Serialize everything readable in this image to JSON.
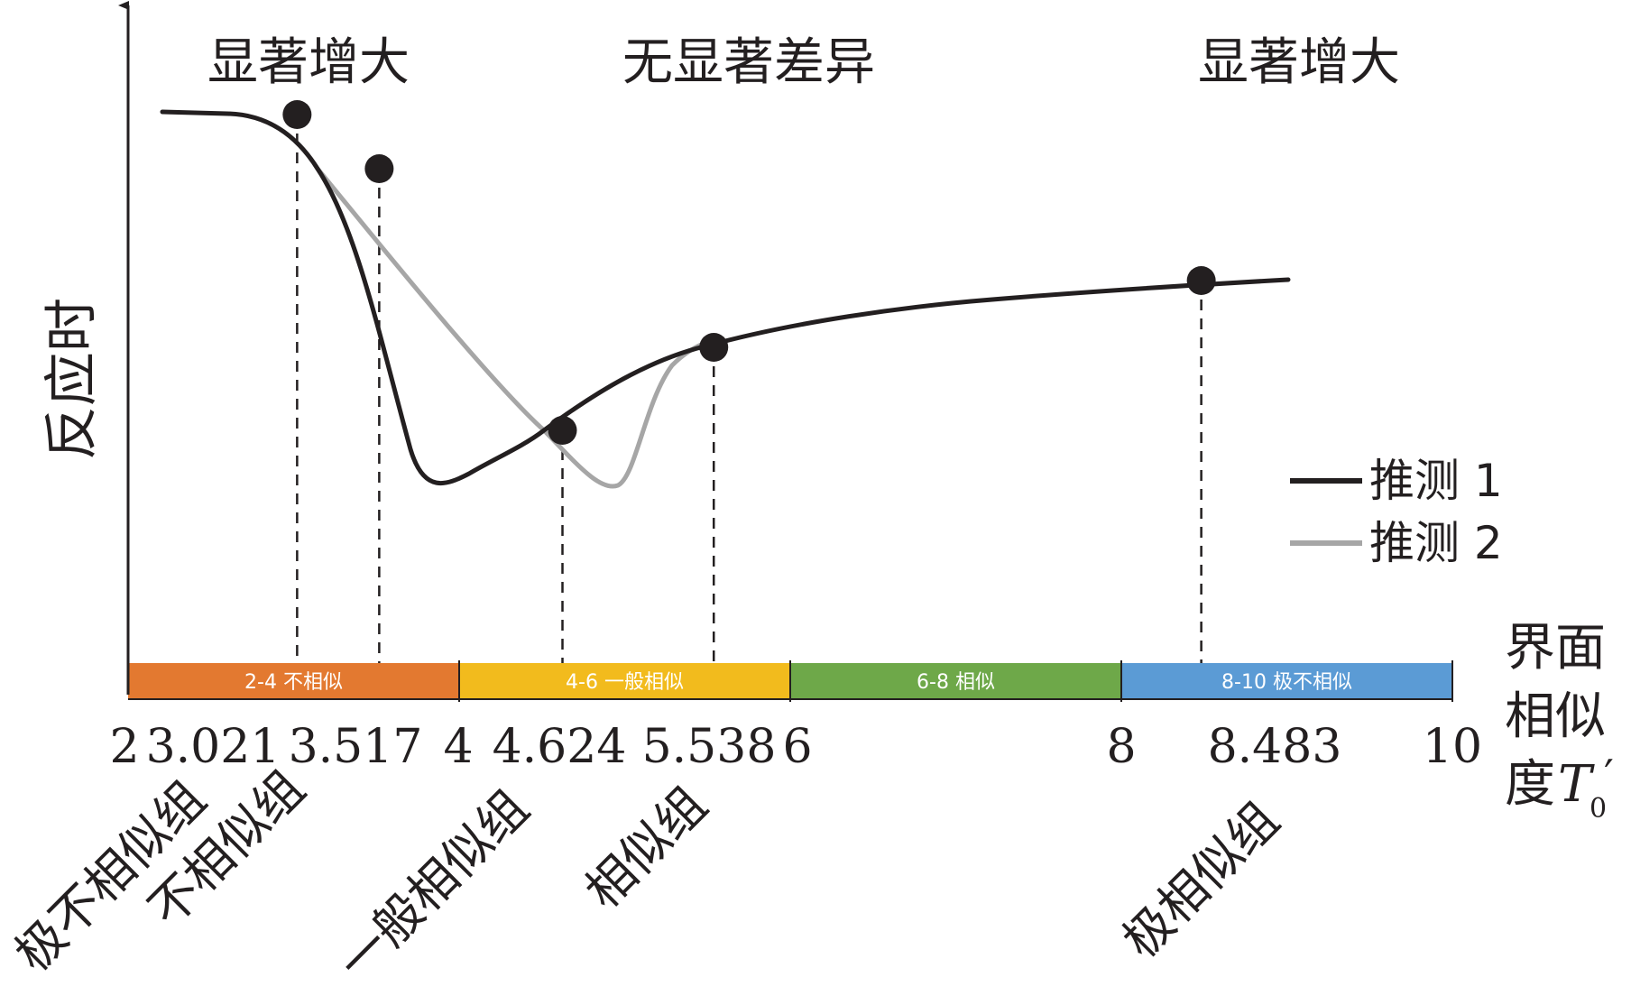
{
  "y_axis_label": "反应时",
  "x_axis_label_lines": [
    "界面",
    "相似",
    "度"
  ],
  "x_axis_symbol": "T",
  "x_axis_subscript": "0",
  "x_axis_prime": "′",
  "region_labels": [
    "显著增大",
    "无显著差异",
    "显著增大"
  ],
  "legend": [
    {
      "label": "推测 1",
      "color": "#231f20"
    },
    {
      "label": "推测 2",
      "color": "#a6a6a6"
    }
  ],
  "bands": [
    {
      "label": "2-4  不相似",
      "color": "#e37930",
      "from": 2,
      "to": 4
    },
    {
      "label": "4-6  一般相似",
      "color": "#f2bb1d",
      "from": 4,
      "to": 6
    },
    {
      "label": "6-8  相似",
      "color": "#6ea849",
      "from": 6,
      "to": 8
    },
    {
      "label": "8-10  极不相似",
      "color": "#5b9bd5",
      "from": 8,
      "to": 10
    }
  ],
  "ticks": [
    "2",
    "3.021",
    "3.517",
    "4",
    "4.624",
    "5.538",
    "6",
    "8",
    "8.483",
    "10"
  ],
  "marker_values": [
    3.021,
    3.517,
    4.624,
    5.538,
    8.483
  ],
  "group_labels": [
    "极不相似组",
    "不相似组",
    "一般相似组",
    "相似组",
    "极相似组"
  ],
  "colors": {
    "curve1": "#231f20",
    "curve2": "#a6a6a6",
    "axis": "#231f20"
  }
}
